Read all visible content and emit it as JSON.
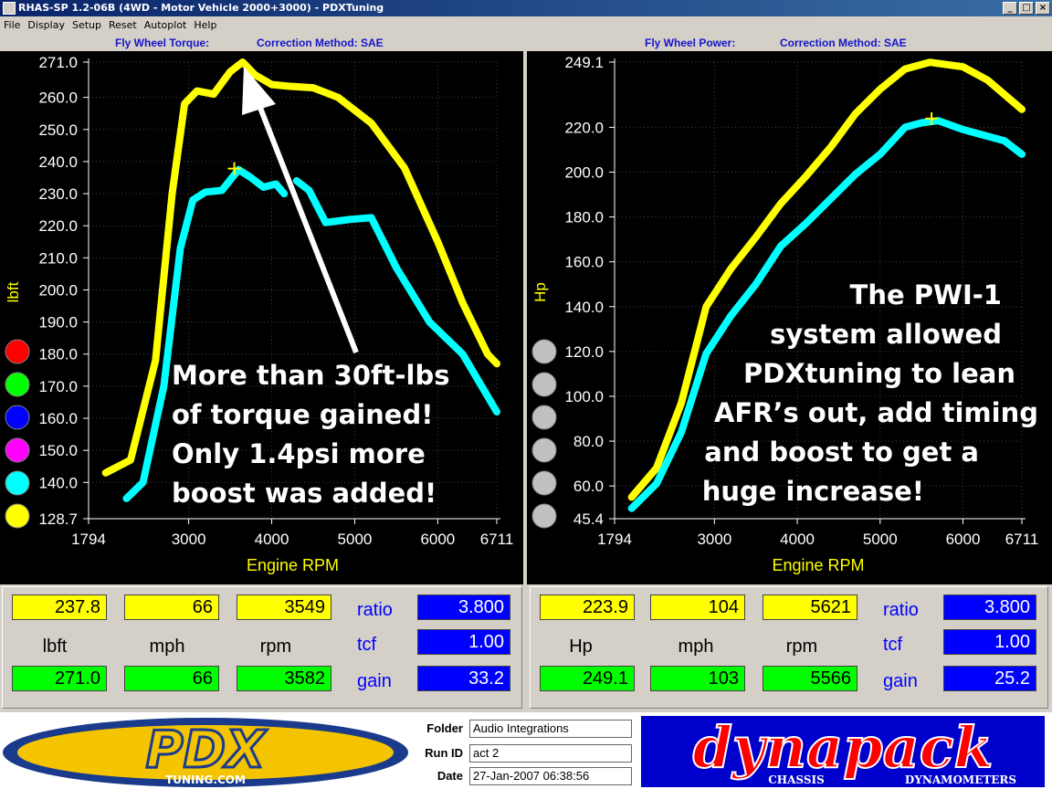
{
  "window": {
    "title": "RHAS-SP 1.2-06B  (4WD - Motor Vehicle 2000+3000) - PDXTuning",
    "buttons": [
      "_",
      "□",
      "×"
    ]
  },
  "menu": [
    "File",
    "Display",
    "Setup",
    "Reset",
    "Autoplot",
    "Help"
  ],
  "left": {
    "header_title": "Fly Wheel Torque:",
    "header_method": "Correction Method: SAE",
    "ylabel": "lbft",
    "xlabel": "Engine RPM",
    "annotation": [
      "More than 30ft-lbs",
      "of torque gained!",
      "Only 1.4psi more",
      "boost was added!"
    ],
    "readout": {
      "row1": [
        "237.8",
        "66",
        "3549"
      ],
      "units": [
        "lbft",
        "mph",
        "rpm"
      ],
      "row2": [
        "271.0",
        "66",
        "3582"
      ],
      "labels": [
        "ratio",
        "tcf",
        "gain"
      ],
      "values": [
        "3.800",
        "1.00",
        "33.2"
      ]
    }
  },
  "right": {
    "header_title": "Fly Wheel Power:",
    "header_method": "Correction Method: SAE",
    "ylabel": "Hp",
    "xlabel": "Engine RPM",
    "annotation": [
      "The PWI-1",
      "system allowed",
      "PDXtuning to lean",
      "AFR’s out, add timing",
      "and boost to get a",
      "huge increase!"
    ],
    "readout": {
      "row1": [
        "223.9",
        "104",
        "5621"
      ],
      "units": [
        "Hp",
        "mph",
        "rpm"
      ],
      "row2": [
        "249.1",
        "103",
        "5566"
      ],
      "labels": [
        "ratio",
        "tcf",
        "gain"
      ],
      "values": [
        "3.800",
        "1.00",
        "25.2"
      ]
    }
  },
  "info": {
    "folder_label": "Folder",
    "folder": "Audio Integrations",
    "runid_label": "Run ID",
    "runid": "act 2",
    "date_label": "Date",
    "date": "27-Jan-2007  06:38:56"
  },
  "logos": {
    "pdx": "PDX",
    "pdx_sub": "TUNING.COM",
    "dyna": "dynapack",
    "dyna_sub1": "CHASSIS",
    "dyna_sub2": "DYNAMOMETERS"
  },
  "colors": {
    "after": "#ffff00",
    "before": "#00ffff",
    "panel": "#000000",
    "axis_text": "#ffffff",
    "label": "#ffff00"
  },
  "legend_dots": [
    "#ff0000",
    "#00ff00",
    "#0000ff",
    "#ff00ff",
    "#00ffff",
    "#ffff00"
  ],
  "chart_data": [
    {
      "type": "line",
      "title": "Fly Wheel Torque:",
      "xlabel": "Engine RPM",
      "ylabel": "lbft",
      "xlim": [
        1794,
        6711
      ],
      "ylim": [
        128.7,
        271.0
      ],
      "xticks": [
        "1794",
        "3000",
        "4000",
        "5000",
        "6000",
        "6711"
      ],
      "xtick_values": [
        1794,
        3000,
        4000,
        5000,
        6000,
        6711
      ],
      "yticks": [
        "271.0",
        "260.0",
        "250.0",
        "240.0",
        "230.0",
        "220.0",
        "210.0",
        "200.0",
        "190.0",
        "180.0",
        "170.0",
        "160.0",
        "150.0",
        "140.0",
        "128.7"
      ],
      "ytick_values": [
        271.0,
        260.0,
        250.0,
        240.0,
        230.0,
        220.0,
        210.0,
        200.0,
        190.0,
        180.0,
        170.0,
        160.0,
        150.0,
        140.0,
        128.7
      ],
      "series": [
        {
          "color": "#ffff00",
          "x": [
            2000,
            2300,
            2600,
            2800,
            2950,
            3100,
            3300,
            3500,
            3650,
            3800,
            4000,
            4200,
            4500,
            4800,
            5200,
            5600,
            6000,
            6300,
            6600,
            6711
          ],
          "y": [
            143,
            147,
            178,
            230,
            258,
            262,
            261,
            268,
            271,
            267,
            264,
            263.5,
            263,
            260,
            252,
            238,
            215,
            196,
            180,
            177
          ]
        },
        {
          "color": "#00ffff",
          "x": [
            2250,
            2450,
            2700,
            2900,
            3050,
            3200,
            3400,
            3600,
            3750,
            3900,
            4050,
            4150,
            null,
            4300,
            4450,
            4650,
            4950,
            5200,
            5500,
            5900,
            6300,
            6711
          ],
          "y": [
            135,
            140,
            170,
            213,
            228,
            230.5,
            231,
            237.5,
            235,
            232,
            233,
            230,
            null,
            234,
            231,
            221,
            222,
            222.5,
            207,
            190,
            180,
            162
          ]
        }
      ]
    },
    {
      "type": "line",
      "title": "Fly Wheel Power:",
      "xlabel": "Engine RPM",
      "ylabel": "Hp",
      "xlim": [
        1794,
        6711
      ],
      "ylim": [
        45.4,
        249.1
      ],
      "xticks": [
        "1794",
        "3000",
        "4000",
        "5000",
        "6000",
        "6711"
      ],
      "xtick_values": [
        1794,
        3000,
        4000,
        5000,
        6000,
        6711
      ],
      "yticks": [
        "249.1",
        "220.0",
        "200.0",
        "180.0",
        "160.0",
        "140.0",
        "120.0",
        "100.0",
        "80.0",
        "60.0",
        "45.4"
      ],
      "ytick_values": [
        249.1,
        220.0,
        200.0,
        180.0,
        160.0,
        140.0,
        120.0,
        100.0,
        80.0,
        60.0,
        45.4
      ],
      "series": [
        {
          "color": "#ffff00",
          "x": [
            2000,
            2300,
            2600,
            2900,
            3200,
            3500,
            3800,
            4100,
            4400,
            4700,
            5000,
            5300,
            5600,
            6000,
            6300,
            6711
          ],
          "y": [
            55,
            68,
            97,
            140,
            157,
            171,
            186,
            198,
            211,
            226,
            237,
            246,
            249,
            247,
            241,
            228
          ]
        },
        {
          "color": "#00ffff",
          "x": [
            2000,
            2300,
            2600,
            2900,
            3200,
            3500,
            3800,
            4100,
            4400,
            4700,
            5000,
            5300,
            5500,
            5700,
            6000,
            6300,
            6500,
            6711
          ],
          "y": [
            50,
            61,
            84,
            119,
            136,
            150,
            167,
            177,
            188,
            199,
            208,
            220,
            222,
            223,
            219,
            216,
            214,
            208
          ]
        }
      ]
    }
  ]
}
